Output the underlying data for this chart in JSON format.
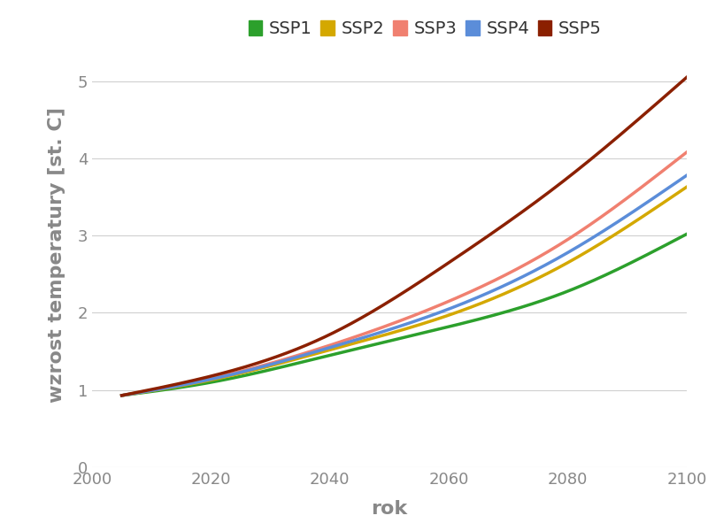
{
  "xlabel": "rok",
  "ylabel": "wzrost temperatury [st. C]",
  "xlim": [
    2000,
    2100
  ],
  "ylim": [
    0,
    5.5
  ],
  "yticks": [
    0,
    1,
    2,
    3,
    4,
    5
  ],
  "xticks": [
    2000,
    2020,
    2040,
    2060,
    2080,
    2100
  ],
  "background_color": "#ffffff",
  "grid_color": "#d0d0d0",
  "series": [
    {
      "label": "SSP1",
      "color": "#2ca02c",
      "points_x": [
        2005,
        2020,
        2040,
        2060,
        2080,
        2100
      ],
      "points_y": [
        0.93,
        1.1,
        1.45,
        1.82,
        2.28,
        3.02
      ]
    },
    {
      "label": "SSP2",
      "color": "#d4a800",
      "points_x": [
        2005,
        2020,
        2040,
        2060,
        2080,
        2100
      ],
      "points_y": [
        0.93,
        1.13,
        1.52,
        1.97,
        2.65,
        3.63
      ]
    },
    {
      "label": "SSP3",
      "color": "#f08070",
      "points_x": [
        2005,
        2020,
        2040,
        2060,
        2080,
        2100
      ],
      "points_y": [
        0.93,
        1.15,
        1.58,
        2.15,
        2.95,
        4.08
      ]
    },
    {
      "label": "SSP4",
      "color": "#5b8dd9",
      "points_x": [
        2005,
        2020,
        2040,
        2060,
        2080,
        2100
      ],
      "points_y": [
        0.93,
        1.14,
        1.55,
        2.05,
        2.78,
        3.78
      ]
    },
    {
      "label": "SSP5",
      "color": "#8b2000",
      "points_x": [
        2005,
        2020,
        2040,
        2060,
        2080,
        2100
      ],
      "points_y": [
        0.93,
        1.18,
        1.72,
        2.65,
        3.75,
        5.05
      ]
    }
  ],
  "legend_colors": [
    "#2ca02c",
    "#d4a800",
    "#f08070",
    "#5b8dd9",
    "#8b2000"
  ],
  "legend_labels": [
    "SSP1",
    "SSP2",
    "SSP3",
    "SSP4",
    "SSP5"
  ],
  "axis_label_color": "#888888",
  "tick_label_color": "#888888",
  "legend_fontsize": 14,
  "axis_label_fontsize": 16,
  "tick_fontsize": 13,
  "line_width": 2.5
}
